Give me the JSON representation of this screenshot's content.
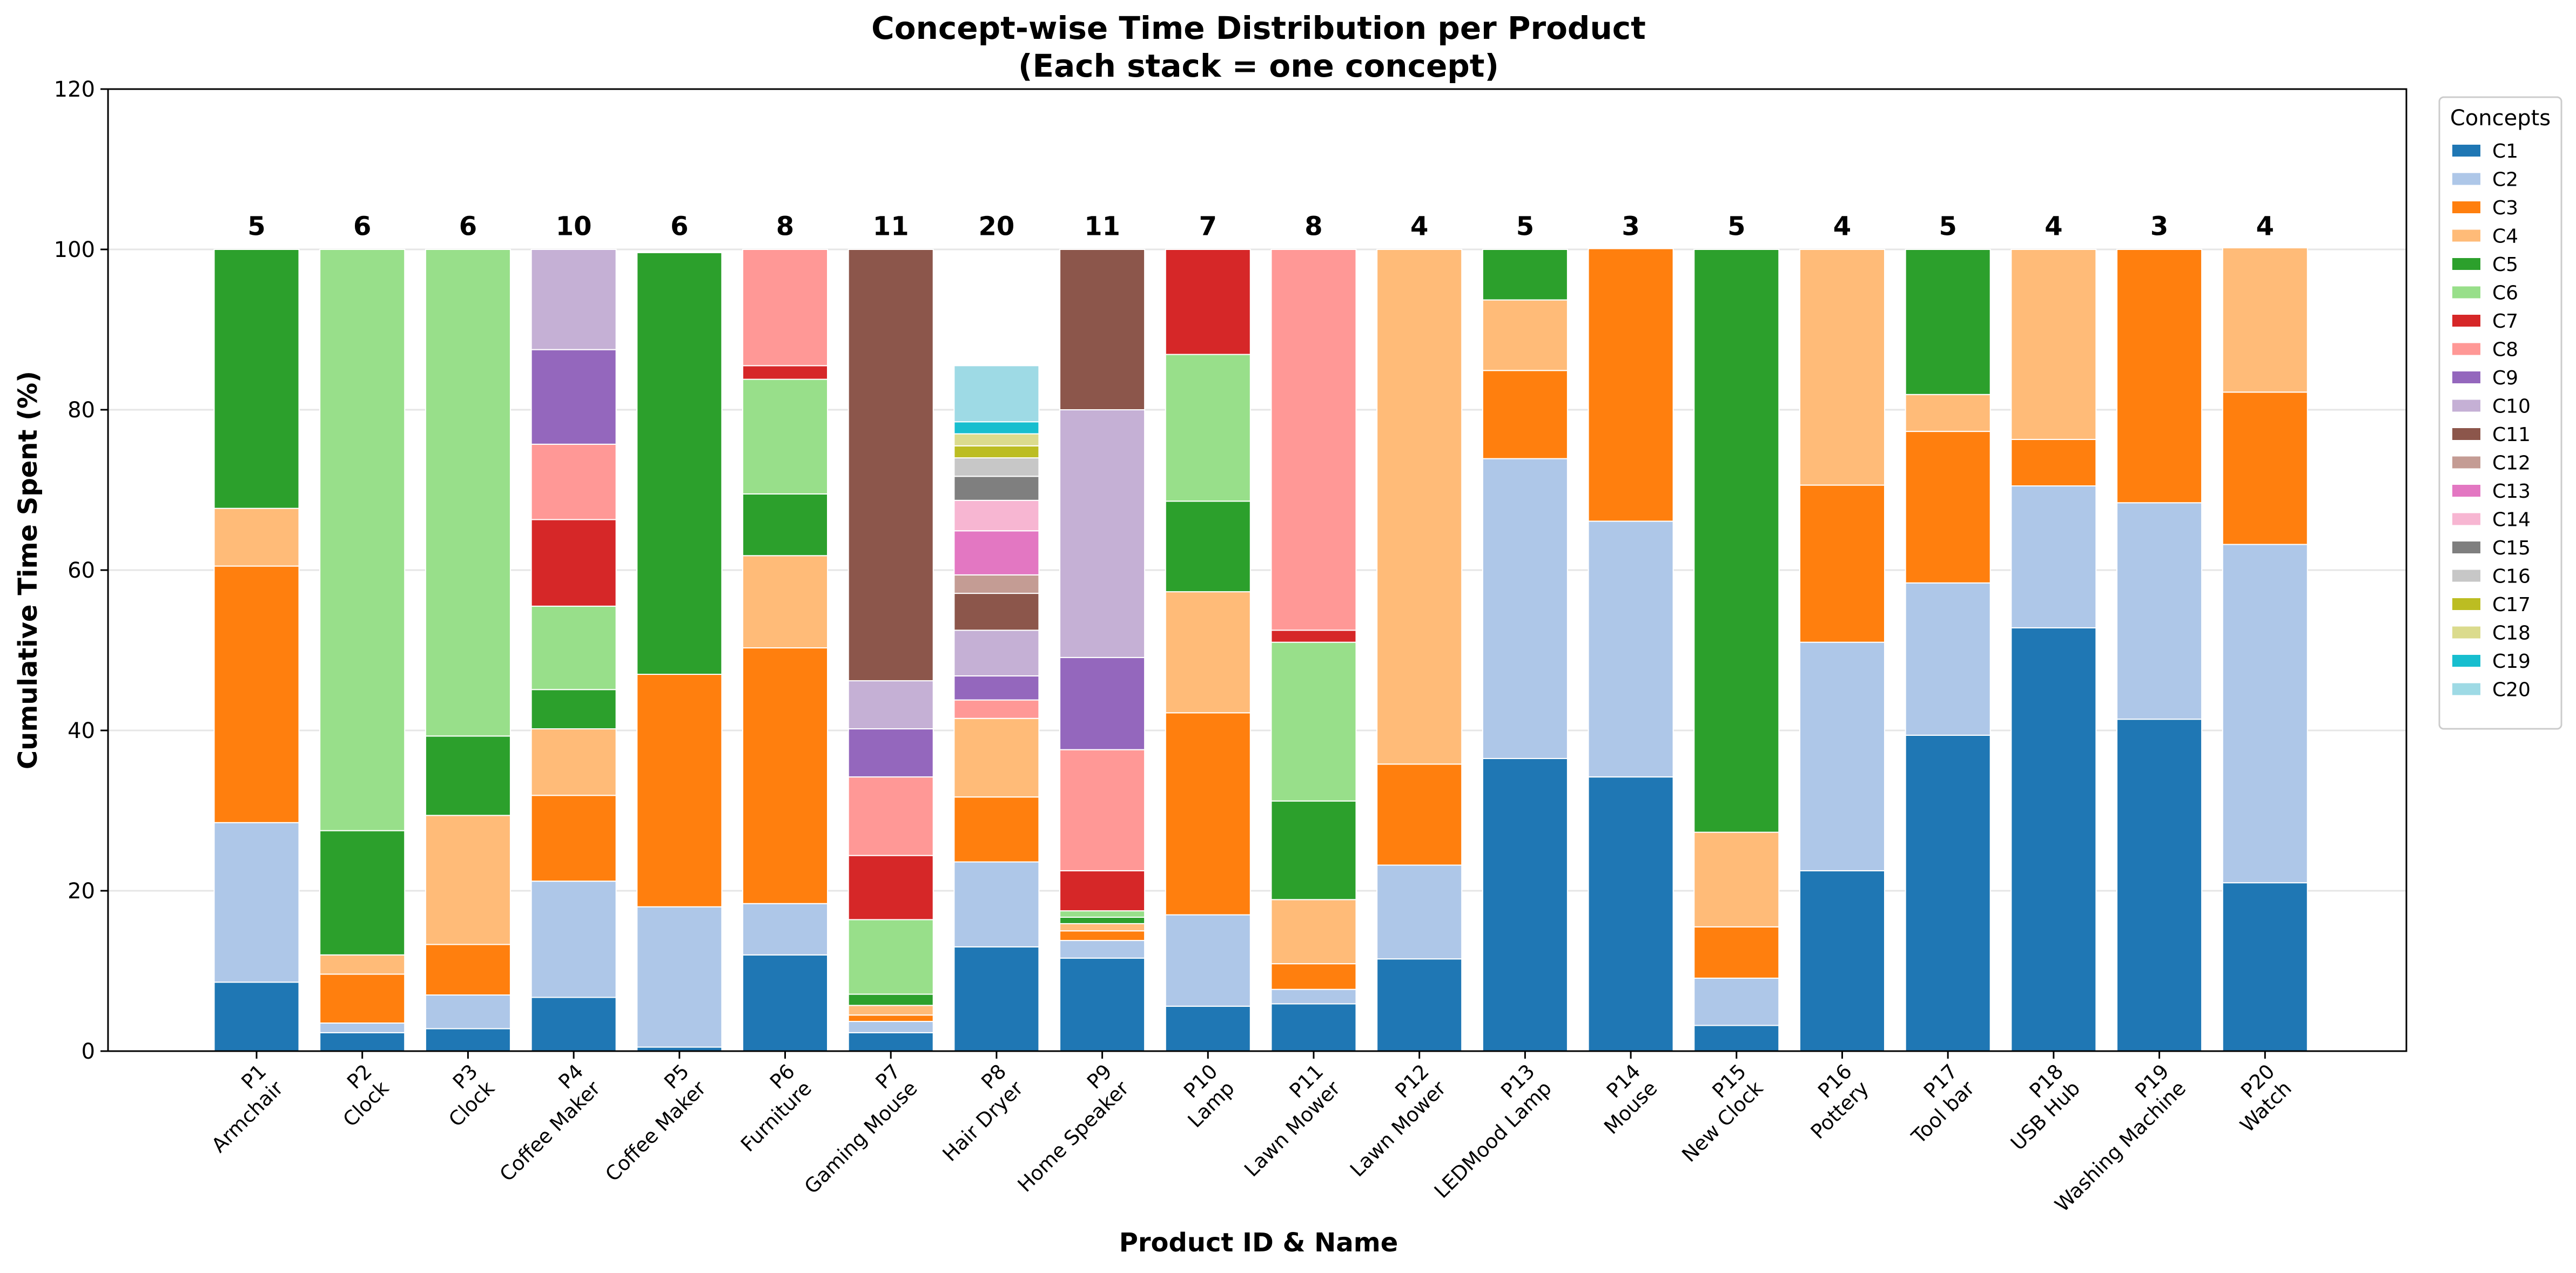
{
  "chart_data": {
    "type": "bar",
    "stacked": true,
    "title": [
      "Concept-wise Time Distribution per Product",
      "(Each stack = one concept)"
    ],
    "xlabel": "Product ID & Name",
    "ylabel": "Cumulative Time Spent (%)",
    "ylim": [
      0,
      120
    ],
    "yticks": [
      0,
      20,
      40,
      60,
      80,
      100,
      120
    ],
    "grid": true,
    "legend": {
      "title": "Concepts",
      "position": "right"
    },
    "categories": [
      [
        "P1",
        "Armchair"
      ],
      [
        "P2",
        "Clock"
      ],
      [
        "P3",
        "Clock"
      ],
      [
        "P4",
        "Coffee Maker"
      ],
      [
        "P5",
        "Coffee Maker"
      ],
      [
        "P6",
        "Furniture"
      ],
      [
        "P7",
        "Gaming Mouse"
      ],
      [
        "P8",
        "Hair Dryer"
      ],
      [
        "P9",
        "Home Speaker"
      ],
      [
        "P10",
        "Lamp"
      ],
      [
        "P11",
        "Lawn Mower"
      ],
      [
        "P12",
        "Lawn Mower"
      ],
      [
        "P13",
        "LEDMood Lamp"
      ],
      [
        "P14",
        "Mouse"
      ],
      [
        "P15",
        "New Clock"
      ],
      [
        "P16",
        "Pottery"
      ],
      [
        "P17",
        "Tool bar"
      ],
      [
        "P18",
        "USB Hub"
      ],
      [
        "P19",
        "Washing Machine"
      ],
      [
        "P20",
        "Watch"
      ]
    ],
    "concept_counts": [
      5,
      6,
      6,
      10,
      6,
      8,
      11,
      20,
      11,
      7,
      8,
      4,
      5,
      3,
      5,
      4,
      5,
      4,
      3,
      4
    ],
    "series": [
      {
        "name": "C1",
        "color": "#1f77b4",
        "values": [
          8.6,
          2.3,
          2.8,
          6.7,
          0.5,
          12.0,
          2.3,
          13.0,
          11.6,
          5.6,
          5.9,
          11.5,
          36.5,
          34.2,
          3.2,
          22.5,
          39.4,
          52.8,
          41.4,
          21.0
        ]
      },
      {
        "name": "C2",
        "color": "#aec7e8",
        "values": [
          19.9,
          1.2,
          4.2,
          14.5,
          17.5,
          6.4,
          1.4,
          10.6,
          2.2,
          11.4,
          1.8,
          11.7,
          37.4,
          31.9,
          5.9,
          28.5,
          19.0,
          17.7,
          27.0,
          42.2
        ]
      },
      {
        "name": "C3",
        "color": "#ff7f0e",
        "values": [
          32.0,
          6.1,
          6.3,
          10.7,
          29.0,
          31.9,
          0.8,
          8.1,
          1.2,
          25.2,
          3.2,
          12.6,
          11.0,
          34.0,
          6.4,
          19.6,
          18.9,
          5.8,
          31.6,
          19.0
        ]
      },
      {
        "name": "C4",
        "color": "#ffbb78",
        "values": [
          7.2,
          2.4,
          16.1,
          8.3,
          0,
          11.5,
          1.2,
          9.8,
          0.9,
          15.1,
          8.0,
          64.2,
          8.8,
          0,
          11.8,
          29.4,
          4.6,
          23.7,
          0,
          18.0
        ]
      },
      {
        "name": "C5",
        "color": "#2ca02c",
        "values": [
          32.3,
          15.5,
          9.9,
          4.9,
          52.6,
          7.7,
          1.4,
          0,
          0.8,
          11.3,
          12.3,
          0,
          6.3,
          0,
          72.7,
          0,
          18.1,
          0,
          0,
          0
        ]
      },
      {
        "name": "C6",
        "color": "#98df8a",
        "values": [
          0,
          72.5,
          60.7,
          10.4,
          0,
          14.3,
          9.3,
          0,
          0.8,
          18.3,
          19.8,
          0,
          0,
          0,
          0,
          0,
          0,
          0,
          0,
          0
        ]
      },
      {
        "name": "C7",
        "color": "#d62728",
        "values": [
          0,
          0,
          0,
          10.8,
          0,
          1.7,
          8.0,
          0,
          5.0,
          13.1,
          1.5,
          0,
          0,
          0,
          0,
          0,
          0,
          0,
          0,
          0
        ]
      },
      {
        "name": "C8",
        "color": "#ff9896",
        "values": [
          0,
          0,
          0,
          9.4,
          0,
          14.5,
          9.8,
          2.3,
          15.1,
          0,
          47.5,
          0,
          0,
          0,
          0,
          0,
          0,
          0,
          0,
          0
        ]
      },
      {
        "name": "C9",
        "color": "#9467bd",
        "values": [
          0,
          0,
          0,
          11.8,
          0,
          0,
          6.0,
          3.0,
          11.5,
          0,
          0,
          0,
          0,
          0,
          0,
          0,
          0,
          0,
          0,
          0
        ]
      },
      {
        "name": "C10",
        "color": "#c5b0d5",
        "values": [
          0,
          0,
          0,
          12.5,
          0,
          0,
          6.0,
          5.7,
          30.9,
          0,
          0,
          0,
          0,
          0,
          0,
          0,
          0,
          0,
          0,
          0
        ]
      },
      {
        "name": "C11",
        "color": "#8c564b",
        "values": [
          0,
          0,
          0,
          0,
          0,
          0,
          53.8,
          4.6,
          20.0,
          0,
          0,
          0,
          0,
          0,
          0,
          0,
          0,
          0,
          0,
          0
        ]
      },
      {
        "name": "C12",
        "color": "#c49c94",
        "values": [
          0,
          0,
          0,
          0,
          0,
          0,
          0,
          2.3,
          0,
          0,
          0,
          0,
          0,
          0,
          0,
          0,
          0,
          0,
          0,
          0
        ]
      },
      {
        "name": "C13",
        "color": "#e377c2",
        "values": [
          0,
          0,
          0,
          0,
          0,
          0,
          0,
          5.5,
          0,
          0,
          0,
          0,
          0,
          0,
          0,
          0,
          0,
          0,
          0,
          0
        ]
      },
      {
        "name": "C14",
        "color": "#f7b6d2",
        "values": [
          0,
          0,
          0,
          0,
          0,
          0,
          0,
          3.8,
          0,
          0,
          0,
          0,
          0,
          0,
          0,
          0,
          0,
          0,
          0,
          0
        ]
      },
      {
        "name": "C15",
        "color": "#7f7f7f",
        "values": [
          0,
          0,
          0,
          0,
          0,
          0,
          0,
          3.0,
          0,
          0,
          0,
          0,
          0,
          0,
          0,
          0,
          0,
          0,
          0,
          0
        ]
      },
      {
        "name": "C16",
        "color": "#c7c7c7",
        "values": [
          0,
          0,
          0,
          0,
          0,
          0,
          0,
          2.3,
          0,
          0,
          0,
          0,
          0,
          0,
          0,
          0,
          0,
          0,
          0,
          0
        ]
      },
      {
        "name": "C17",
        "color": "#bcbd22",
        "values": [
          0,
          0,
          0,
          0,
          0,
          0,
          0,
          1.5,
          0,
          0,
          0,
          0,
          0,
          0,
          0,
          0,
          0,
          0,
          0,
          0
        ]
      },
      {
        "name": "C18",
        "color": "#dbdb8d",
        "values": [
          0,
          0,
          0,
          0,
          0,
          0,
          0,
          1.5,
          0,
          0,
          0,
          0,
          0,
          0,
          0,
          0,
          0,
          0,
          0,
          0
        ]
      },
      {
        "name": "C19",
        "color": "#17becf",
        "values": [
          0,
          0,
          0,
          0,
          0,
          0,
          0,
          1.5,
          0,
          0,
          0,
          0,
          0,
          0,
          0,
          0,
          0,
          0,
          0,
          0
        ]
      },
      {
        "name": "C20",
        "color": "#9edae5",
        "values": [
          0,
          0,
          0,
          0,
          0,
          0,
          0,
          7.0,
          0,
          0,
          0,
          0,
          0,
          0,
          0,
          0,
          0,
          0,
          0,
          0
        ]
      }
    ]
  }
}
